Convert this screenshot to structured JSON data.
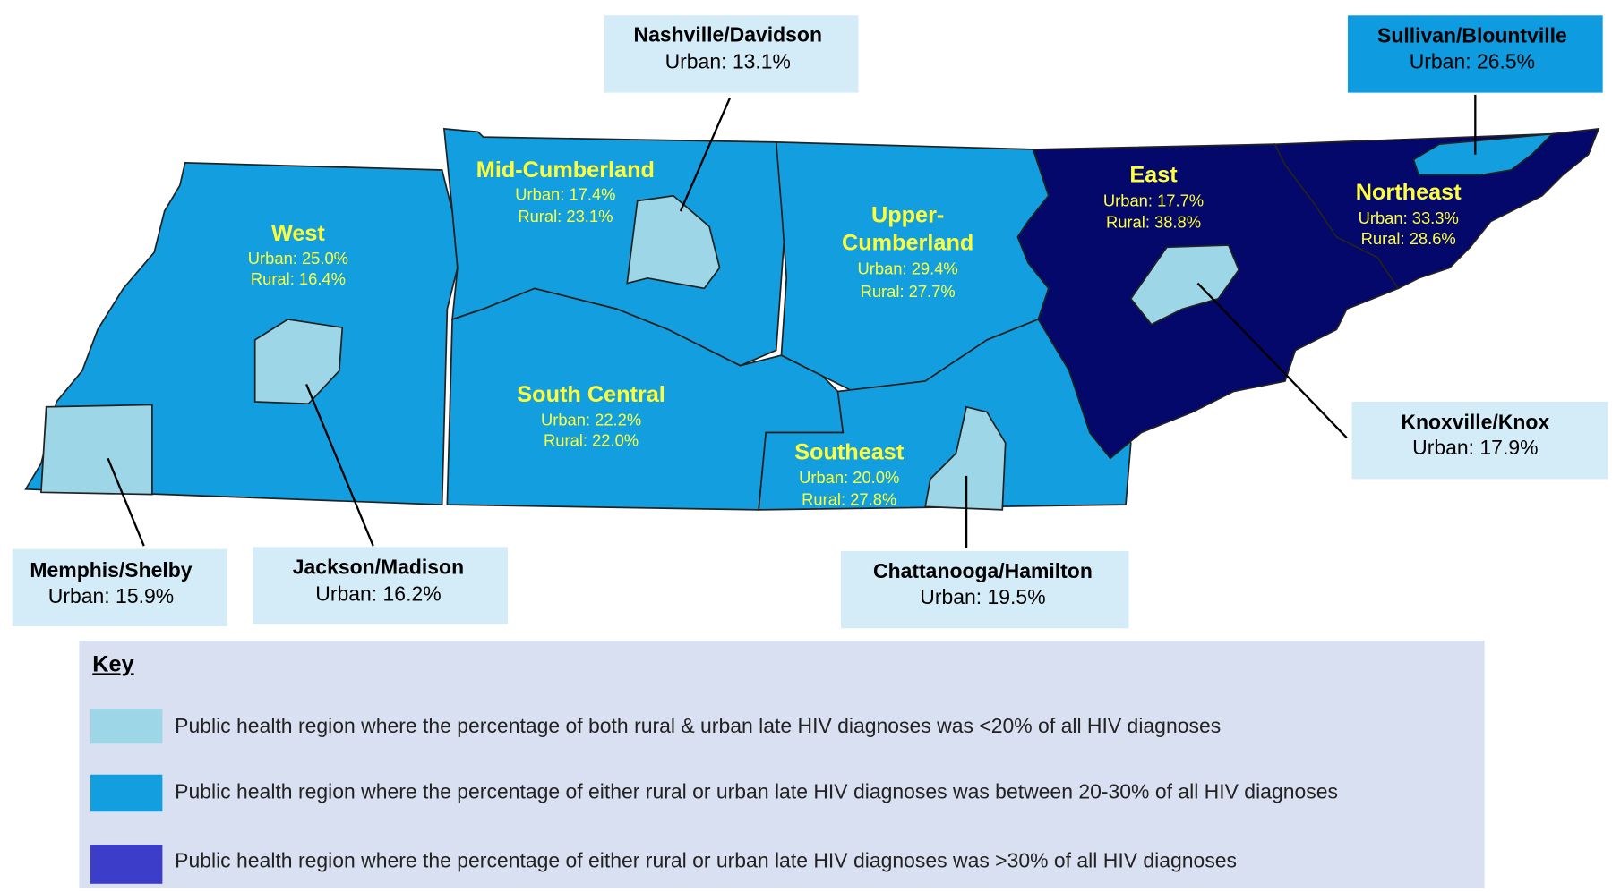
{
  "regions": [
    {
      "name": "West",
      "lines": [
        "Urban: 25.0%",
        "Rural: 16.4%"
      ]
    },
    {
      "name": "Mid-Cumberland",
      "lines": [
        "Urban: 17.4%",
        "Rural: 23.1%"
      ]
    },
    {
      "name": [
        "Upper-",
        "Cumberland"
      ],
      "lines": [
        "Urban: 29.4%",
        "Rural: 27.7%"
      ]
    },
    {
      "name": "South Central",
      "lines": [
        "Urban: 22.2%",
        "Rural: 22.0%"
      ]
    },
    {
      "name": "Southeast",
      "lines": [
        "Urban: 20.0%",
        "Rural: 27.8%"
      ]
    },
    {
      "name": "East",
      "lines": [
        "Urban: 17.7%",
        "Rural: 38.8%"
      ]
    },
    {
      "name": "Northeast",
      "lines": [
        "Urban: 33.3%",
        "Rural: 28.6%"
      ]
    }
  ],
  "callouts": [
    {
      "name": "Nashville/Davidson",
      "lines": [
        "Urban: 13.1%"
      ]
    },
    {
      "name": "Sullivan/Blountville",
      "lines": [
        "Urban: 26.5%"
      ]
    },
    {
      "name": "Memphis/Shelby",
      "lines": [
        "Urban: 15.9%"
      ]
    },
    {
      "name": "Jackson/Madison",
      "lines": [
        "Urban: 16.2%"
      ]
    },
    {
      "name": "Chattanooga/Hamilton",
      "lines": [
        "Urban: 19.5%"
      ]
    },
    {
      "name": "Knoxville/Knox",
      "lines": [
        "Urban: 17.9%"
      ]
    }
  ],
  "key": {
    "title": "Key",
    "items": [
      "Public health region where the percentage of both rural & urban late HIV diagnoses was <20% of all HIV diagnoses",
      "Public health region where the percentage of either rural or urban late HIV diagnoses was between 20-30% of all HIV diagnoses",
      "Public health region where the percentage of either rural or urban late HIV diagnoses was >30% of all HIV diagnoses"
    ]
  }
}
